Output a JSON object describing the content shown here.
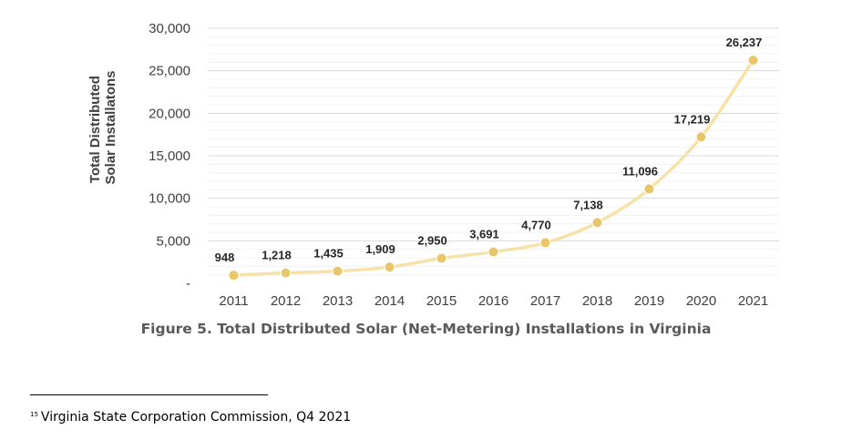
{
  "chart_data": {
    "type": "line",
    "categories": [
      "2011",
      "2012",
      "2013",
      "2014",
      "2015",
      "2016",
      "2017",
      "2018",
      "2019",
      "2020",
      "2021"
    ],
    "series": [
      {
        "values": [
          948,
          1218,
          1435,
          1909,
          2950,
          3691,
          4770,
          7138,
          11096,
          17219,
          26237
        ]
      }
    ],
    "data_labels": [
      "948",
      "1,218",
      "1,435",
      "1,909",
      "2,950",
      "3,691",
      "4,770",
      "7,138",
      "11,096",
      "17,219",
      "26,237"
    ],
    "ylabel_lines": [
      "Total Distributed",
      "Solar Installatons"
    ],
    "yticks": [
      0,
      5000,
      10000,
      15000,
      20000,
      25000,
      30000
    ],
    "ytick_labels": [
      "-",
      "5,000",
      "10,000",
      "15,000",
      "20,000",
      "25,000",
      "30,000"
    ],
    "ylim": [
      0,
      30000
    ],
    "grid": true,
    "line_color": "#f6e2a8",
    "marker_color": "#e8c669"
  },
  "caption": "Figure 5. Total Distributed Solar (Net-Metering) Installations in Virginia",
  "footnote": {
    "number": "15",
    "text": "Virginia State Corporation Commission, Q4 2021"
  }
}
